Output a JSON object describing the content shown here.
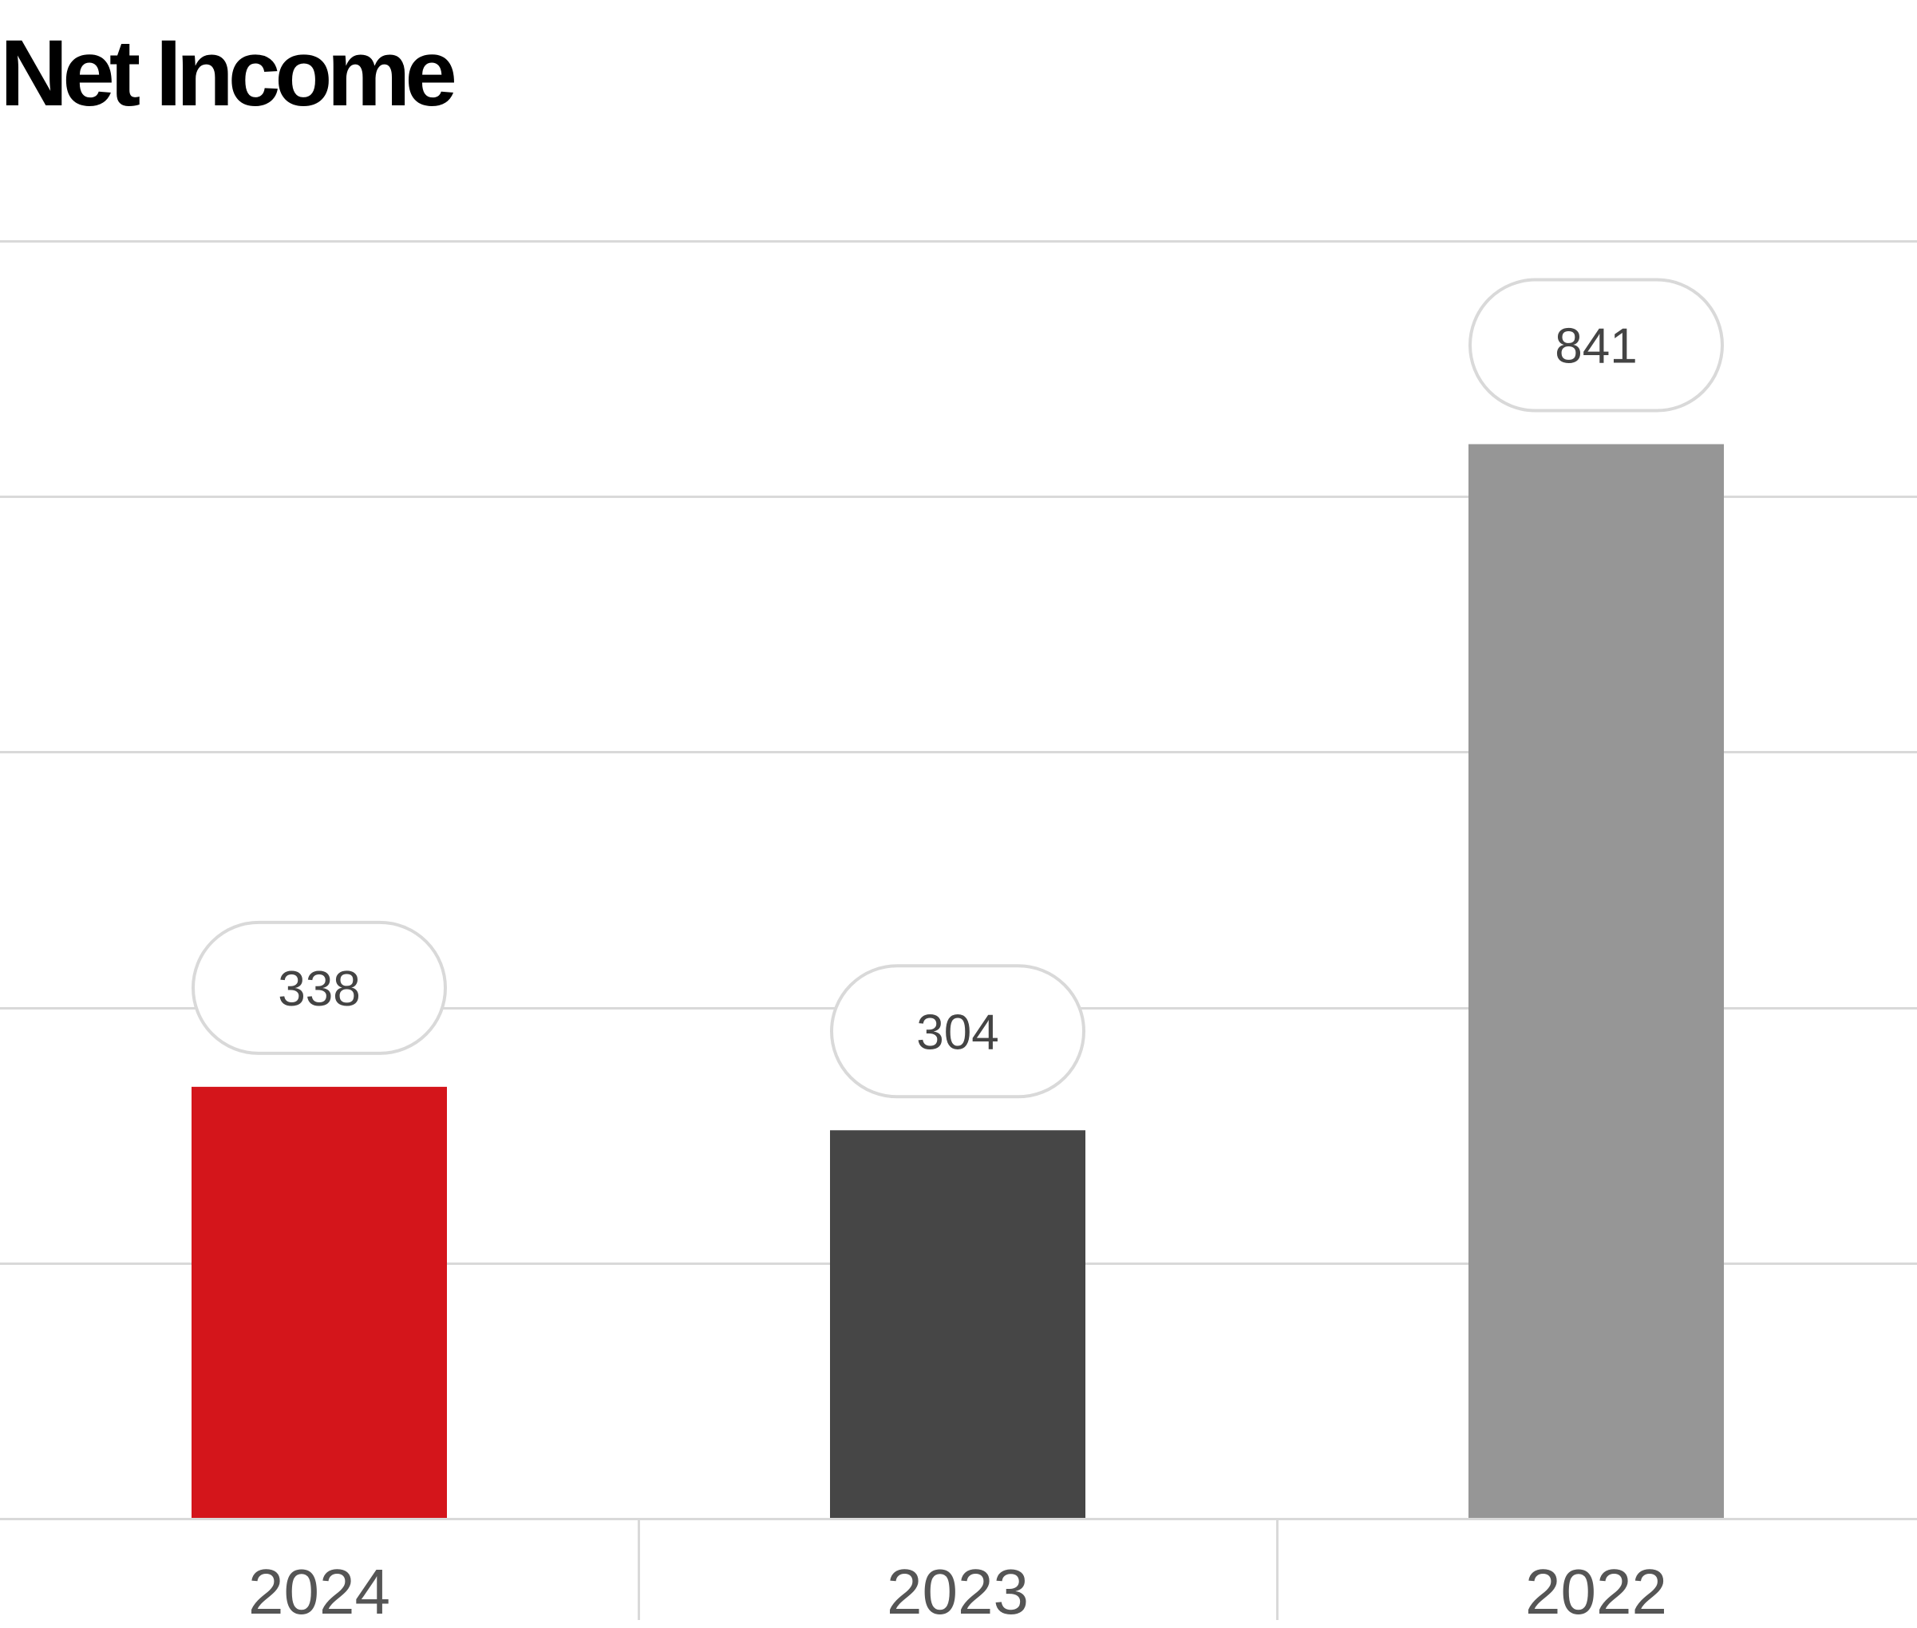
{
  "chart_data": {
    "type": "bar",
    "title": "Net Income",
    "categories": [
      "2024",
      "2023",
      "2022"
    ],
    "values": [
      338,
      304,
      841
    ],
    "value_labels": [
      "338",
      "304",
      "841"
    ],
    "bar_colors": [
      "#d4151b",
      "#464646",
      "#969696"
    ],
    "xlabel": "",
    "ylabel": "",
    "ylim": [
      0,
      1000
    ],
    "grid": true,
    "legend": "none"
  },
  "colors": {
    "gridline": "#d9d9d9",
    "label_text": "#444444",
    "tick_text": "#555555",
    "pill_border": "#d9d9d9"
  }
}
